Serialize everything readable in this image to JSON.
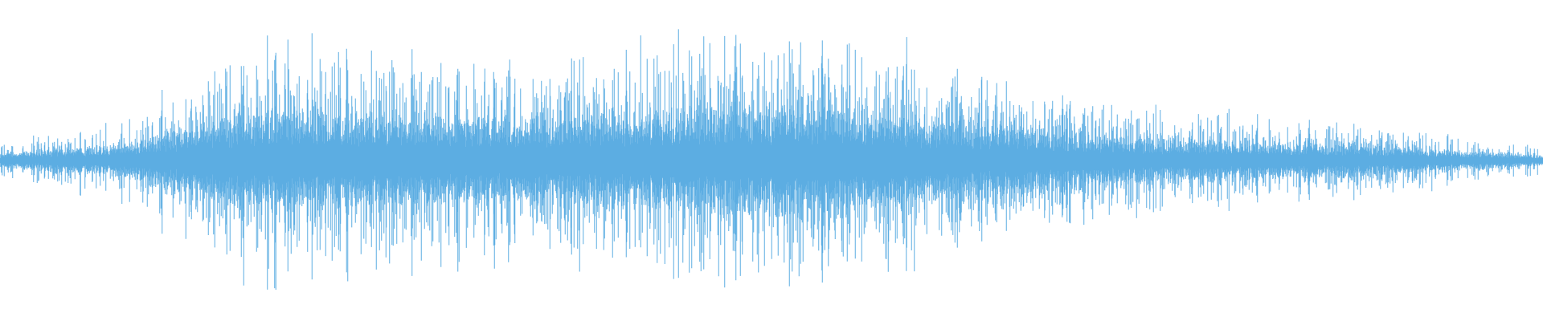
{
  "chart_data": {
    "type": "waveform",
    "color": "#5dade2",
    "background": "#ffffff",
    "axes": "none",
    "grid": false,
    "amplitude_range": [
      -1,
      1
    ],
    "envelope": {
      "position": [
        0,
        0.08,
        0.17,
        0.26,
        0.36,
        0.46,
        0.53,
        0.62,
        0.7,
        0.78,
        0.86,
        0.94,
        1.0
      ],
      "peak": [
        0.12,
        0.3,
        0.92,
        0.78,
        0.75,
        0.95,
        0.93,
        0.7,
        0.45,
        0.35,
        0.3,
        0.18,
        0.1
      ]
    }
  }
}
